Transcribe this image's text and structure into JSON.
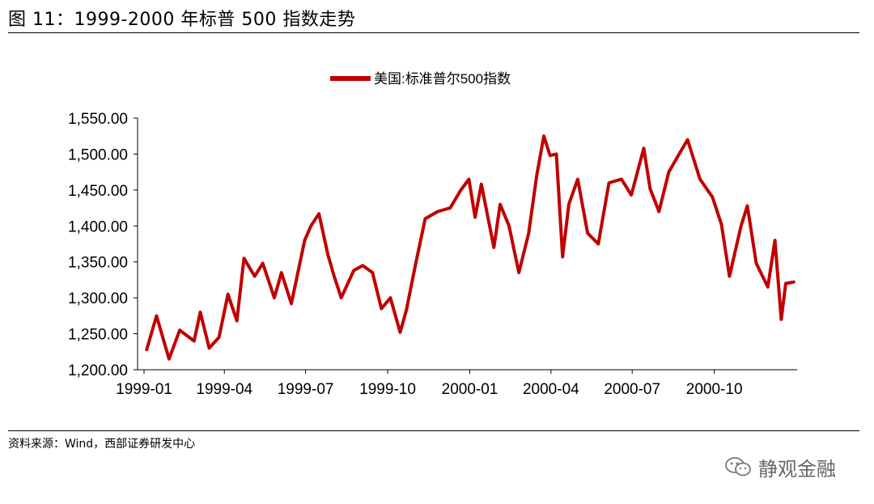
{
  "figure": {
    "title": "图 11：1999-2000 年标普 500 指数走势",
    "source": "资料来源：Wind，西部证券研发中心",
    "watermark": "静观金融"
  },
  "colors": {
    "series": "#C00000",
    "axis": "#000000"
  },
  "chart_data": {
    "type": "line",
    "title": "",
    "xlabel": "",
    "ylabel": "",
    "legend_position": "top-center",
    "grid": false,
    "ylim": [
      1200,
      1550
    ],
    "yticks": [
      "1,200.00",
      "1,250.00",
      "1,300.00",
      "1,350.00",
      "1,400.00",
      "1,450.00",
      "1,500.00",
      "1,550.00"
    ],
    "xticks": [
      "1999-01",
      "1999-04",
      "1999-07",
      "1999-10",
      "2000-01",
      "2000-04",
      "2000-07",
      "2000-10"
    ],
    "series": [
      {
        "name": "美国:标准普尔500指数",
        "x": [
          "1999-01-04",
          "1999-01-15",
          "1999-01-29",
          "1999-02-10",
          "1999-02-26",
          "1999-03-05",
          "1999-03-15",
          "1999-03-26",
          "1999-04-05",
          "1999-04-15",
          "1999-04-23",
          "1999-05-05",
          "1999-05-14",
          "1999-05-27",
          "1999-06-04",
          "1999-06-15",
          "1999-06-30",
          "1999-07-07",
          "1999-07-16",
          "1999-07-26",
          "1999-08-02",
          "1999-08-10",
          "1999-08-24",
          "1999-09-03",
          "1999-09-14",
          "1999-09-24",
          "1999-10-04",
          "1999-10-15",
          "1999-10-22",
          "1999-11-01",
          "1999-11-12",
          "1999-11-26",
          "1999-12-10",
          "1999-12-22",
          "1999-12-31",
          "2000-01-07",
          "2000-01-14",
          "2000-01-28",
          "2000-02-04",
          "2000-02-14",
          "2000-02-25",
          "2000-03-07",
          "2000-03-16",
          "2000-03-24",
          "2000-03-31",
          "2000-04-07",
          "2000-04-14",
          "2000-04-21",
          "2000-05-01",
          "2000-05-12",
          "2000-05-24",
          "2000-06-05",
          "2000-06-19",
          "2000-06-30",
          "2000-07-14",
          "2000-07-21",
          "2000-07-31",
          "2000-08-11",
          "2000-08-25",
          "2000-09-01",
          "2000-09-15",
          "2000-09-29",
          "2000-10-09",
          "2000-10-18",
          "2000-10-31",
          "2000-11-07",
          "2000-11-17",
          "2000-11-30",
          "2000-12-08",
          "2000-12-15",
          "2000-12-20",
          "2000-12-29"
        ],
        "values": [
          1228,
          1275,
          1215,
          1255,
          1240,
          1280,
          1230,
          1245,
          1305,
          1268,
          1355,
          1330,
          1348,
          1300,
          1335,
          1292,
          1380,
          1400,
          1417,
          1360,
          1330,
          1300,
          1338,
          1345,
          1335,
          1285,
          1300,
          1252,
          1283,
          1345,
          1410,
          1420,
          1425,
          1450,
          1465,
          1412,
          1458,
          1370,
          1430,
          1400,
          1335,
          1390,
          1470,
          1525,
          1498,
          1500,
          1357,
          1430,
          1465,
          1390,
          1375,
          1460,
          1465,
          1443,
          1508,
          1452,
          1420,
          1475,
          1505,
          1520,
          1465,
          1440,
          1402,
          1330,
          1400,
          1428,
          1348,
          1315,
          1380,
          1270,
          1320,
          1322
        ]
      }
    ]
  }
}
